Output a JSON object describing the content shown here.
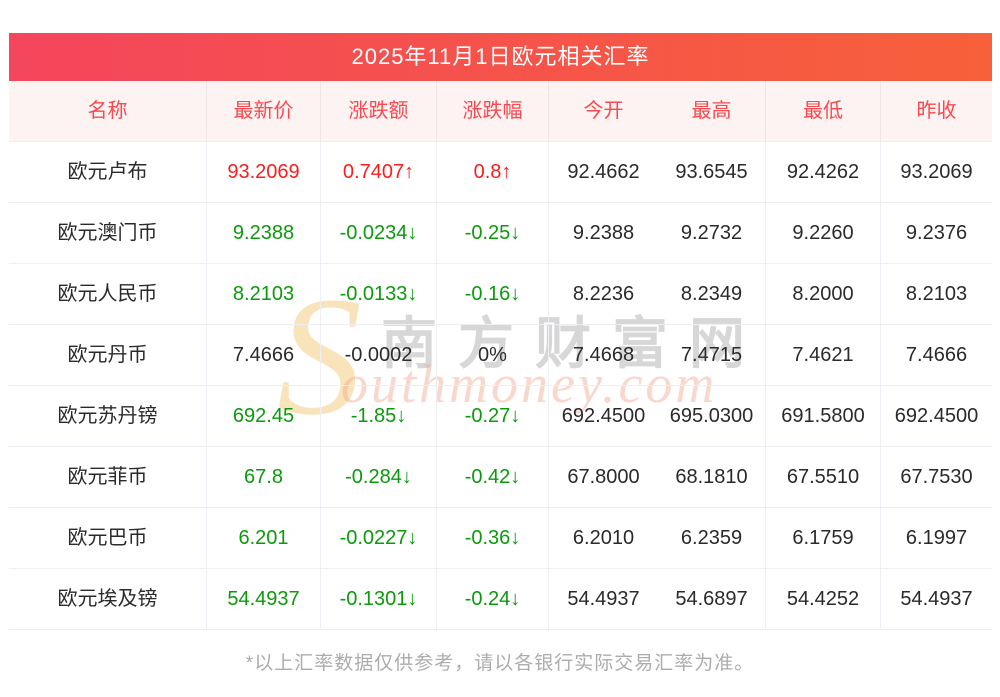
{
  "title": "2025年11月1日欧元相关汇率",
  "chart_data": {
    "type": "table",
    "title": "2025年11月1日欧元相关汇率",
    "columns": [
      "名称",
      "最新价",
      "涨跌额",
      "涨跌幅",
      "今开",
      "最高",
      "最低",
      "昨收"
    ],
    "rows": [
      {
        "name": "欧元卢布",
        "latest": "93.2069",
        "change": "0.7407↑",
        "pct": "0.8↑",
        "open": "92.4662",
        "high": "93.6545",
        "low": "92.4262",
        "prev": "93.2069",
        "trend": "up"
      },
      {
        "name": "欧元澳门币",
        "latest": "9.2388",
        "change": "-0.0234↓",
        "pct": "-0.25↓",
        "open": "9.2388",
        "high": "9.2732",
        "low": "9.2260",
        "prev": "9.2376",
        "trend": "down"
      },
      {
        "name": "欧元人民币",
        "latest": "8.2103",
        "change": "-0.0133↓",
        "pct": "-0.16↓",
        "open": "8.2236",
        "high": "8.2349",
        "low": "8.2000",
        "prev": "8.2103",
        "trend": "down"
      },
      {
        "name": "欧元丹币",
        "latest": "7.4666",
        "change": "-0.0002",
        "pct": "0%",
        "open": "7.4668",
        "high": "7.4715",
        "low": "7.4621",
        "prev": "7.4666",
        "trend": "flat"
      },
      {
        "name": "欧元苏丹镑",
        "latest": "692.45",
        "change": "-1.85↓",
        "pct": "-0.27↓",
        "open": "692.4500",
        "high": "695.0300",
        "low": "691.5800",
        "prev": "692.4500",
        "trend": "down"
      },
      {
        "name": "欧元菲币",
        "latest": "67.8",
        "change": "-0.284↓",
        "pct": "-0.42↓",
        "open": "67.8000",
        "high": "68.1810",
        "low": "67.5510",
        "prev": "67.7530",
        "trend": "down"
      },
      {
        "name": "欧元巴币",
        "latest": "6.201",
        "change": "-0.0227↓",
        "pct": "-0.36↓",
        "open": "6.2010",
        "high": "6.2359",
        "low": "6.1759",
        "prev": "6.1997",
        "trend": "down"
      },
      {
        "name": "欧元埃及镑",
        "latest": "54.4937",
        "change": "-0.1301↓",
        "pct": "-0.24↓",
        "open": "54.4937",
        "high": "54.6897",
        "low": "54.4252",
        "prev": "54.4937",
        "trend": "down"
      }
    ]
  },
  "watermark": {
    "s_glyph": "S",
    "cn_text": "南方财富网",
    "en_text": "outhmoney.com"
  },
  "footer_note": "*以上汇率数据仅供参考，请以各银行实际交易汇率为准。",
  "colors": {
    "up": "#fc1d1d",
    "down": "#0c9a0c",
    "header_text": "#f9494f",
    "header_bg": "#fcf3f2",
    "gradient_left": "#f4465c",
    "gradient_right": "#f7603a",
    "watermark_s": "#f9e3ba"
  }
}
